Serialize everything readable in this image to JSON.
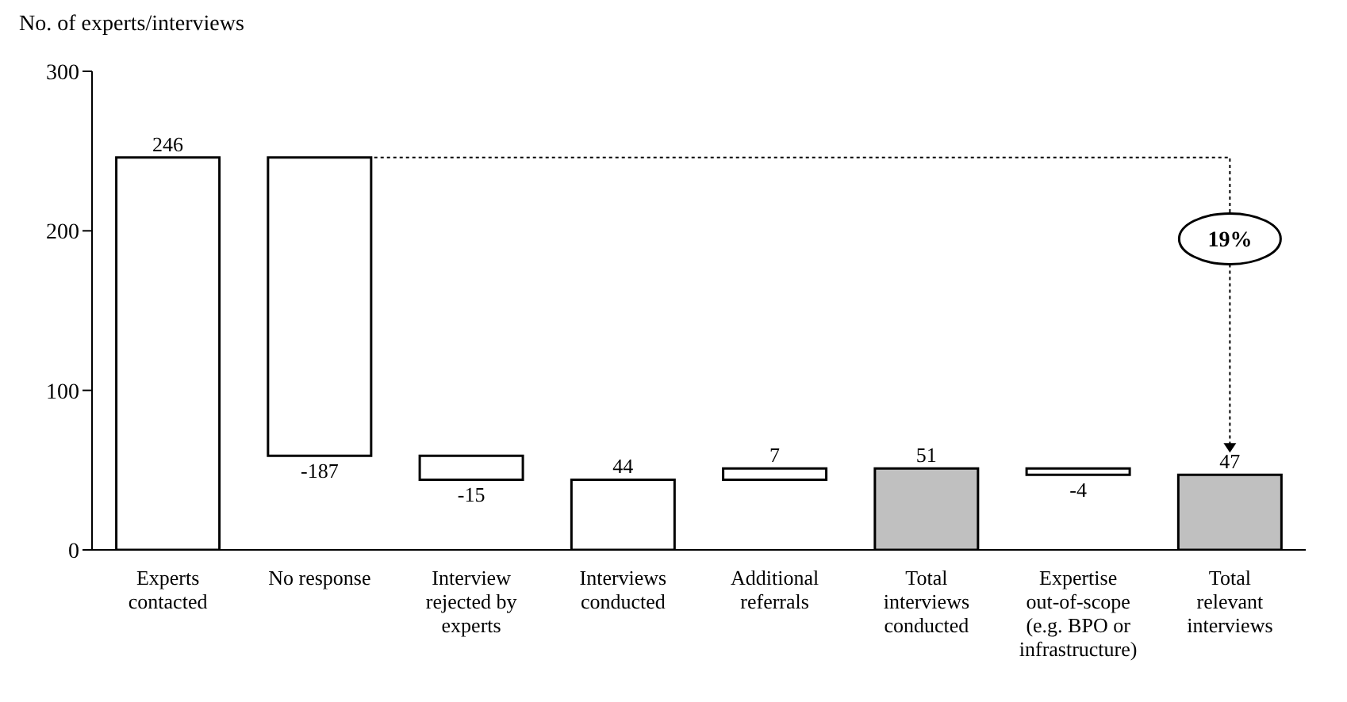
{
  "chart_data": {
    "type": "bar",
    "ylabel": "No. of experts/interviews",
    "categories": [
      "Experts contacted",
      "No response",
      "Interview rejected by experts",
      "Interviews conducted",
      "Additional referrals",
      "Total interviews conducted",
      "Expertise out-of-scope (e.g. BPO or infrastructure)",
      "Total relevant interviews"
    ],
    "values": [
      246,
      -187,
      -15,
      44,
      7,
      51,
      -4,
      47
    ],
    "base": [
      0,
      246,
      59,
      0,
      44,
      0,
      51,
      0
    ],
    "colors": [
      "#ffffff",
      "#ffffff",
      "#ffffff",
      "#ffffff",
      "#ffffff",
      "#c0c0c0",
      "#ffffff",
      "#c0c0c0"
    ],
    "ylim": [
      0,
      300
    ],
    "yticks": [
      0,
      100,
      200,
      300
    ],
    "data_labels": true,
    "grid": false,
    "annotations": [
      "19%"
    ]
  }
}
